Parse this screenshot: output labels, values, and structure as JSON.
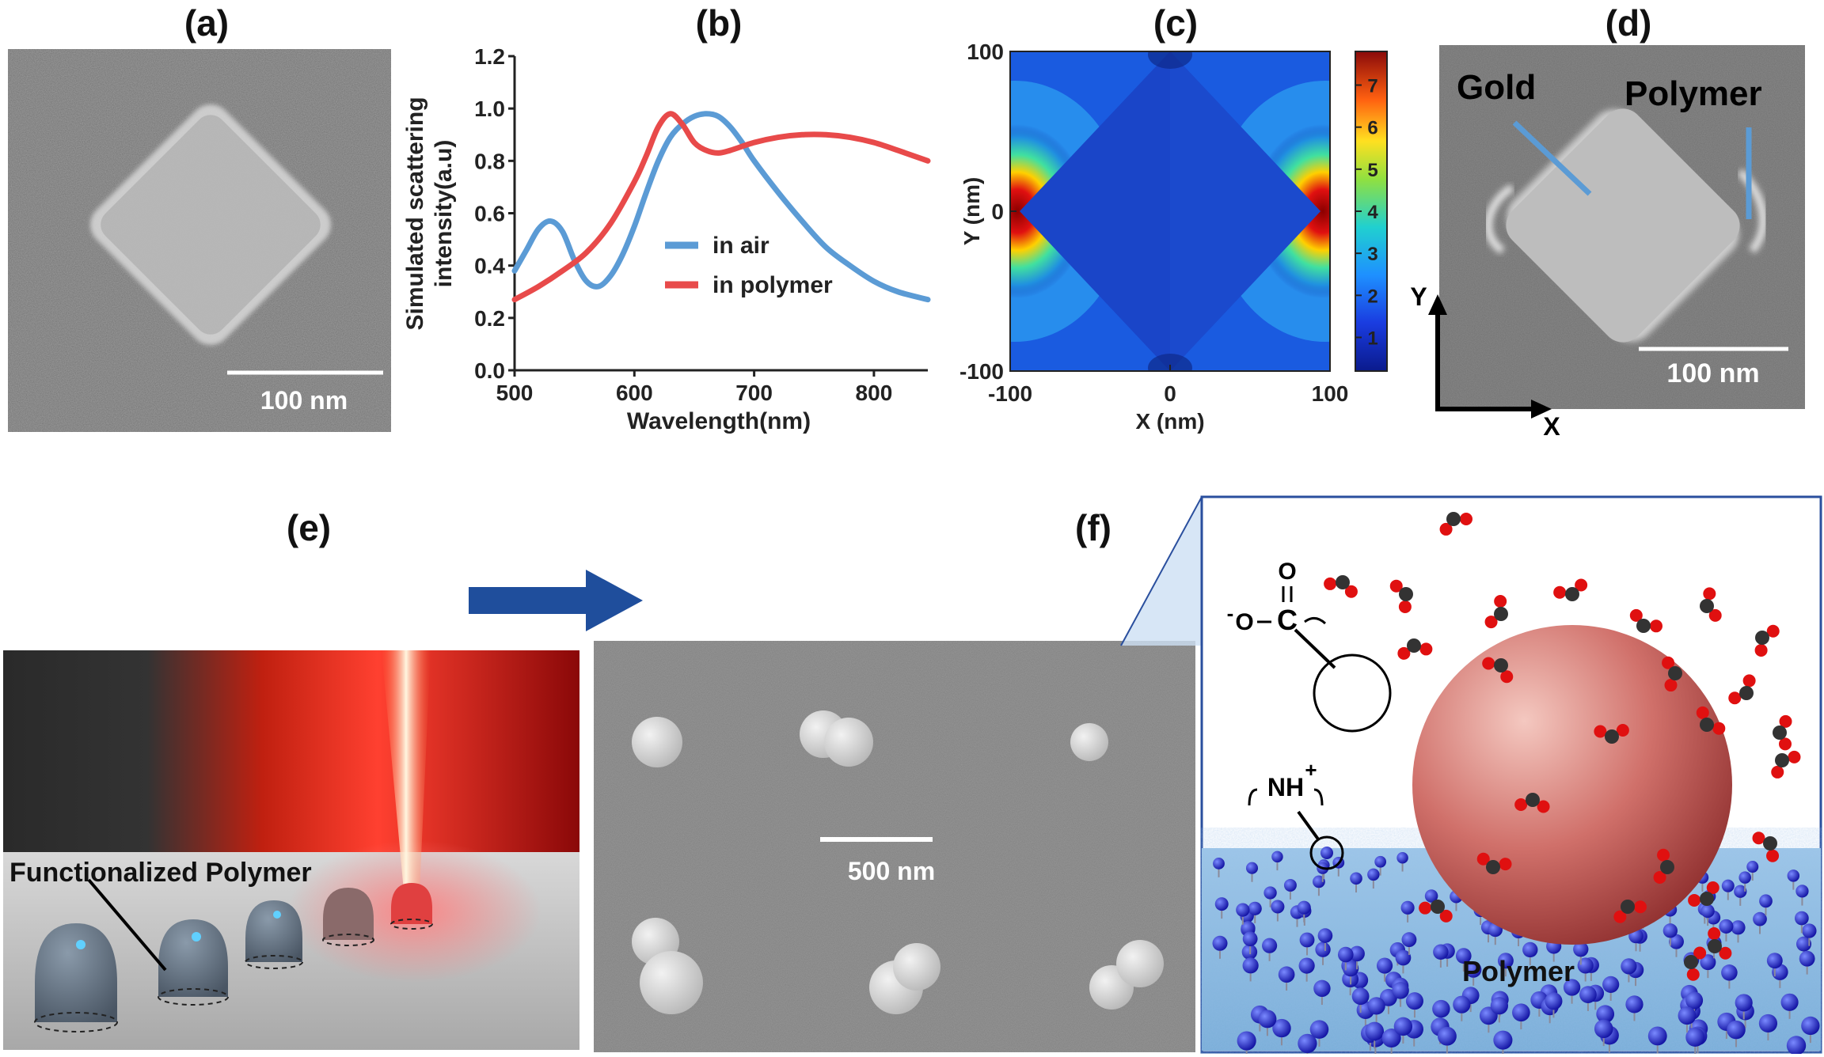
{
  "panel_labels": {
    "a": "(a)",
    "b": "(b)",
    "c": "(c)",
    "d": "(d)",
    "e": "(e)",
    "f": "(f)"
  },
  "panel_a": {
    "scalebar": "100 nm"
  },
  "panel_b": {
    "chart_data": {
      "type": "line",
      "xlabel": "Wavelength(nm)",
      "ylabel_line1": "Simulated scattering",
      "ylabel_line2": "intensity(a.u)",
      "xlim": [
        500,
        845
      ],
      "ylim": [
        0.0,
        1.2
      ],
      "x_ticks": [
        "500",
        "600",
        "700",
        "800"
      ],
      "y_ticks": [
        "0.0",
        "0.2",
        "0.4",
        "0.6",
        "0.8",
        "1.0",
        "1.2"
      ],
      "legend_position": "center-right",
      "series": [
        {
          "name": "in air",
          "color": "#5b9bd5",
          "x": [
            500,
            510,
            520,
            530,
            540,
            550,
            560,
            570,
            580,
            590,
            600,
            610,
            620,
            630,
            640,
            650,
            660,
            670,
            680,
            690,
            700,
            720,
            740,
            760,
            780,
            800,
            820,
            845
          ],
          "y": [
            0.38,
            0.46,
            0.54,
            0.57,
            0.53,
            0.42,
            0.34,
            0.32,
            0.36,
            0.44,
            0.55,
            0.68,
            0.8,
            0.89,
            0.94,
            0.97,
            0.98,
            0.97,
            0.93,
            0.87,
            0.8,
            0.68,
            0.57,
            0.47,
            0.4,
            0.34,
            0.3,
            0.27
          ]
        },
        {
          "name": "in polymer",
          "color": "#e84a4a",
          "x": [
            500,
            520,
            540,
            560,
            580,
            600,
            610,
            620,
            630,
            640,
            650,
            660,
            670,
            680,
            700,
            720,
            740,
            760,
            780,
            800,
            820,
            845
          ],
          "y": [
            0.27,
            0.32,
            0.38,
            0.45,
            0.56,
            0.72,
            0.82,
            0.93,
            0.98,
            0.94,
            0.87,
            0.84,
            0.83,
            0.84,
            0.87,
            0.89,
            0.9,
            0.9,
            0.89,
            0.87,
            0.84,
            0.8
          ]
        }
      ]
    }
  },
  "panel_c": {
    "chart_data": {
      "type": "heatmap",
      "xlabel": "X (nm)",
      "ylabel": "Y (nm)",
      "xlim": [
        -100,
        100
      ],
      "ylim": [
        -100,
        100
      ],
      "x_ticks": [
        "-100",
        "0",
        "100"
      ],
      "y_ticks": [
        "100",
        "0",
        "-100"
      ],
      "colorbar_ticks": [
        "7",
        "6",
        "5",
        "4",
        "3",
        "2",
        "1"
      ]
    }
  },
  "panel_d": {
    "label_gold": "Gold",
    "label_polymer": "Polymer",
    "scalebar": "100 nm",
    "axis_y": "Y",
    "axis_x": "X"
  },
  "panel_e": {
    "polymer_label": "Functionalized Polymer",
    "scalebar": "500 nm"
  },
  "panel_f": {
    "carboxyl_O": "O",
    "carboxyl_C": "C",
    "carboxyl_minus": "-",
    "carboxyl_O2": "O",
    "amine": "NH",
    "amine_charge": "+",
    "polymer_label": "Polymer"
  },
  "colors": {
    "arrow": "#1f4e9c",
    "frame": "#2a4f9e",
    "air": "#5b9bd5",
    "polymer": "#e84a4a"
  }
}
